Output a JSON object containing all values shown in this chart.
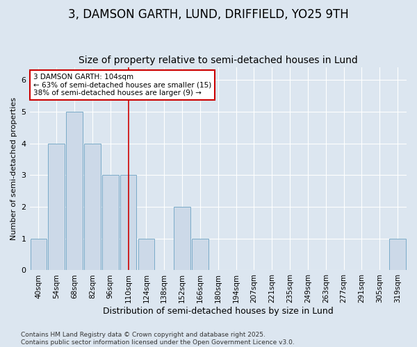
{
  "title": "3, DAMSON GARTH, LUND, DRIFFIELD, YO25 9TH",
  "subtitle": "Size of property relative to semi-detached houses in Lund",
  "xlabel": "Distribution of semi-detached houses by size in Lund",
  "ylabel": "Number of semi-detached properties",
  "categories": [
    "40sqm",
    "54sqm",
    "68sqm",
    "82sqm",
    "96sqm",
    "110sqm",
    "124sqm",
    "138sqm",
    "152sqm",
    "166sqm",
    "180sqm",
    "194sqm",
    "207sqm",
    "221sqm",
    "235sqm",
    "249sqm",
    "263sqm",
    "277sqm",
    "291sqm",
    "305sqm",
    "319sqm"
  ],
  "values": [
    1,
    4,
    5,
    4,
    3,
    3,
    1,
    0,
    2,
    1,
    0,
    0,
    0,
    0,
    0,
    0,
    0,
    0,
    0,
    0,
    1
  ],
  "bar_color": "#ccd9e8",
  "bar_edge_color": "#7aaac8",
  "red_line_index": 5,
  "annotation_text": "3 DAMSON GARTH: 104sqm\n← 63% of semi-detached houses are smaller (15)\n38% of semi-detached houses are larger (9) →",
  "annotation_box_color": "#ffffff",
  "annotation_box_edge": "#cc0000",
  "red_line_color": "#cc0000",
  "ylim": [
    0,
    6.4
  ],
  "yticks": [
    0,
    1,
    2,
    3,
    4,
    5,
    6
  ],
  "background_color": "#dce6f0",
  "plot_bg_color": "#dce6f0",
  "footer_text": "Contains HM Land Registry data © Crown copyright and database right 2025.\nContains public sector information licensed under the Open Government Licence v3.0.",
  "title_fontsize": 12,
  "subtitle_fontsize": 10,
  "xlabel_fontsize": 9,
  "ylabel_fontsize": 8,
  "tick_fontsize": 7.5,
  "footer_fontsize": 6.5
}
